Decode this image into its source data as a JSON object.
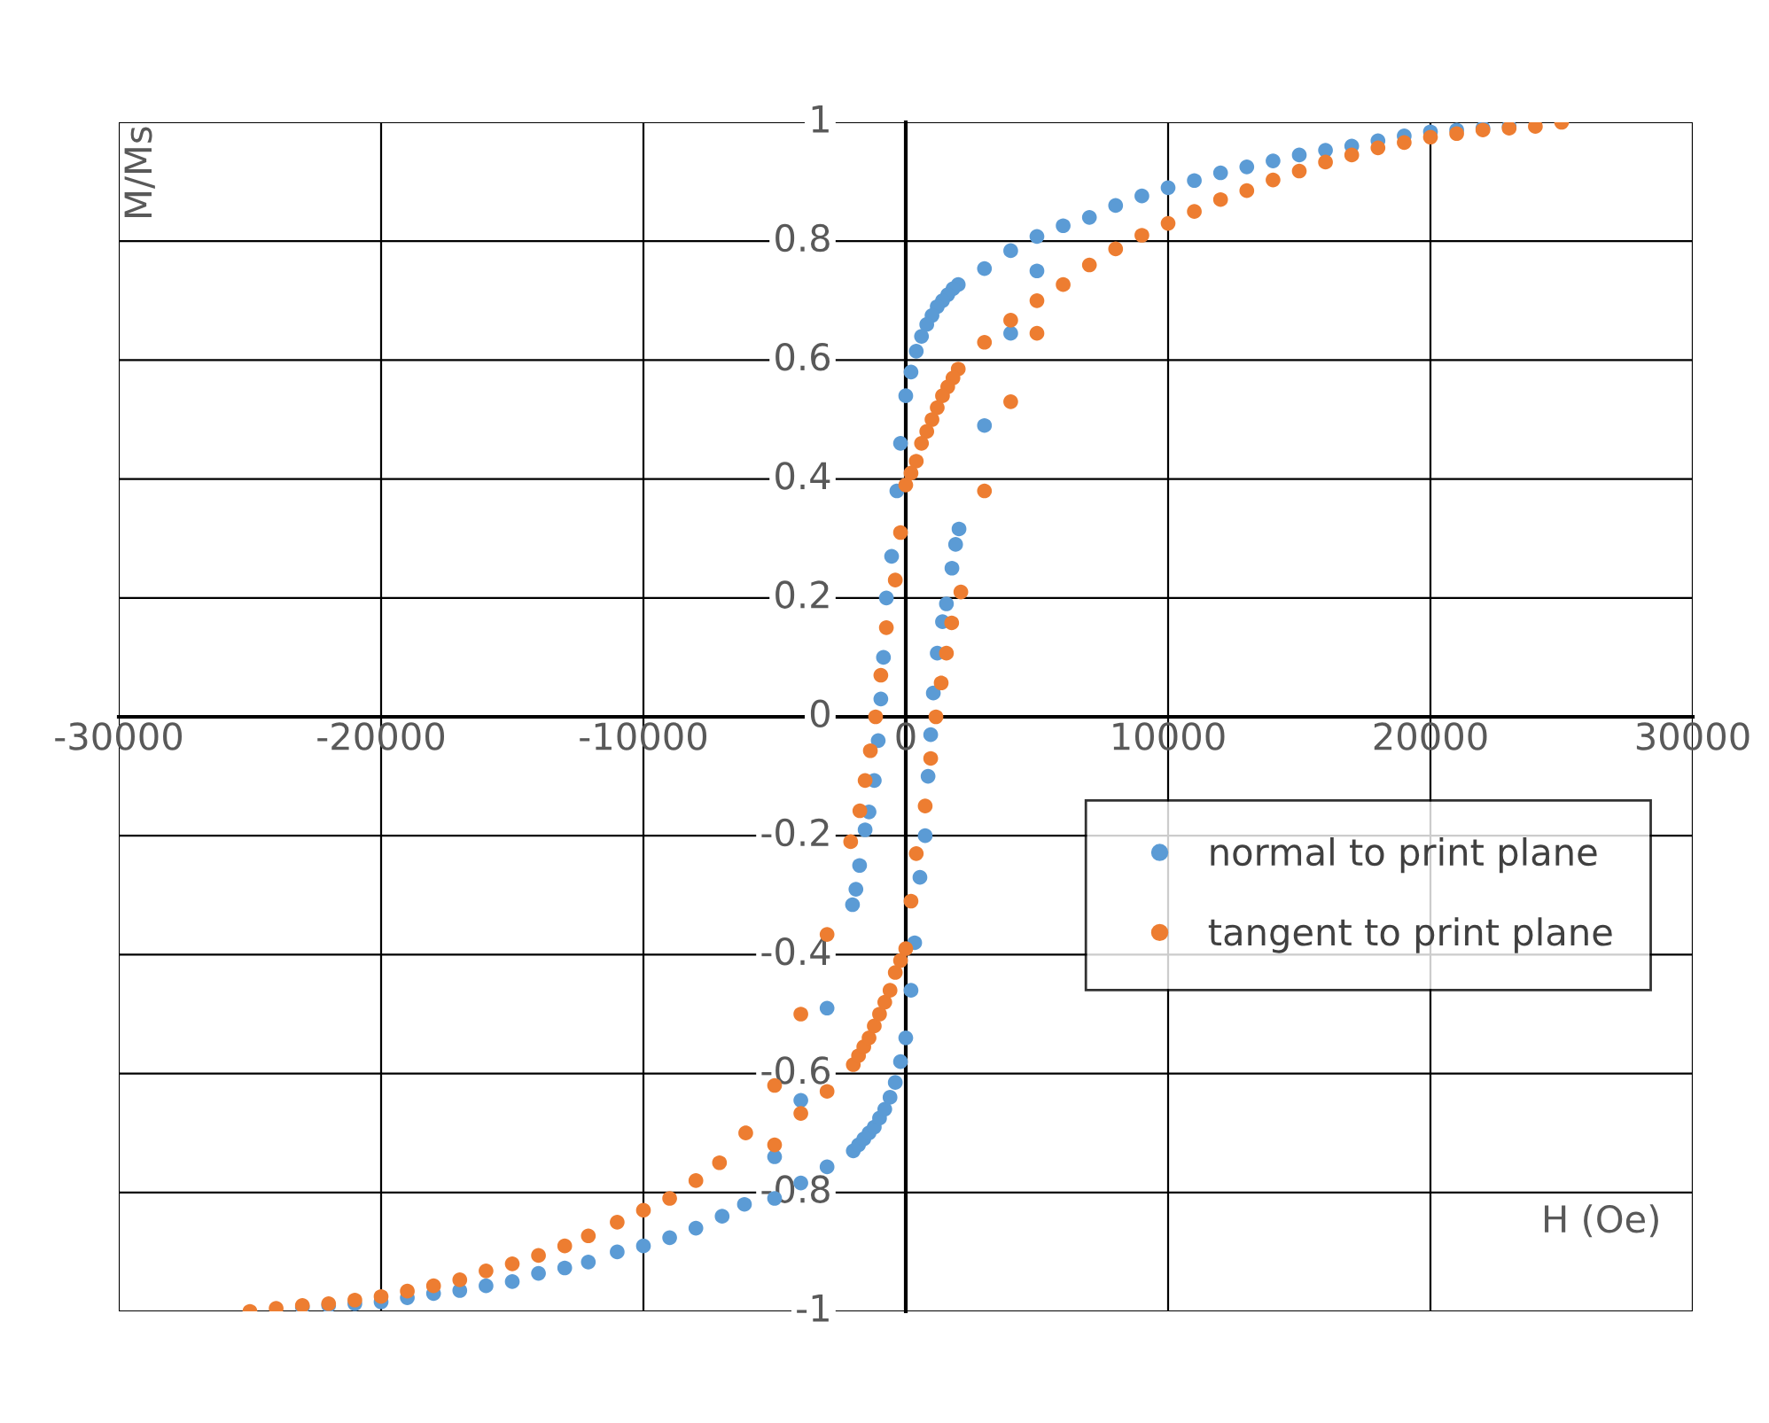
{
  "chart_data": {
    "type": "scatter",
    "xlabel": "H (Oe)",
    "ylabel": "M/Ms",
    "xlim": [
      -30000,
      30000
    ],
    "ylim": [
      -1,
      1
    ],
    "xticks": [
      -30000,
      -20000,
      -10000,
      0,
      10000,
      20000,
      30000
    ],
    "yticks": [
      -1,
      -0.8,
      -0.6,
      -0.4,
      -0.2,
      0,
      0.2,
      0.4,
      0.6,
      0.8,
      1
    ],
    "grid": true,
    "legend": "center right",
    "marker": "circle",
    "series": [
      {
        "name": "normal to print plane",
        "color": "#5b9bd5",
        "x": [
          23000,
          22000,
          21000,
          20000,
          19000,
          18000,
          17000,
          16000,
          15000,
          14000,
          13000,
          12000,
          11000,
          10000,
          9000,
          8000,
          7000,
          6000,
          5000,
          4000,
          3000,
          2000,
          1800,
          1600,
          1400,
          1200,
          1000,
          800,
          600,
          400,
          200,
          0,
          -200,
          -340,
          -540,
          -740,
          -850,
          -950,
          -1050,
          -1200,
          -1400,
          -1550,
          -1760,
          -1900,
          -2030,
          -3000,
          -4000,
          -5000,
          -6150,
          -7000,
          -8000,
          -9000,
          -10000,
          -11000,
          -12100,
          -13000,
          -14000,
          -15000,
          -16000,
          -17000,
          -18000,
          -19000,
          -20000,
          -21000,
          -22000,
          -23000,
          -5000,
          -4000,
          -3000,
          -2000,
          -1800,
          -1600,
          -1400,
          -1200,
          -1000,
          -800,
          -600,
          -400,
          -200,
          0,
          200,
          340,
          540,
          740,
          850,
          950,
          1050,
          1200,
          1400,
          1550,
          1760,
          1900,
          2030,
          3000,
          4000,
          5000
        ],
        "values": [
          0.993,
          0.99,
          0.987,
          0.984,
          0.977,
          0.969,
          0.96,
          0.953,
          0.945,
          0.935,
          0.925,
          0.915,
          0.902,
          0.89,
          0.876,
          0.86,
          0.84,
          0.826,
          0.808,
          0.784,
          0.754,
          0.727,
          0.72,
          0.71,
          0.7,
          0.69,
          0.675,
          0.66,
          0.64,
          0.615,
          0.58,
          0.54,
          0.46,
          0.38,
          0.27,
          0.2,
          0.1,
          0.03,
          -0.04,
          -0.107,
          -0.16,
          -0.19,
          -0.25,
          -0.29,
          -0.316,
          -0.49,
          -0.645,
          -0.74,
          -0.82,
          -0.84,
          -0.86,
          -0.876,
          -0.89,
          -0.9,
          -0.917,
          -0.927,
          -0.936,
          -0.95,
          -0.957,
          -0.965,
          -0.97,
          -0.977,
          -0.984,
          -0.987,
          -0.99,
          -0.993,
          -0.81,
          -0.784,
          -0.757,
          -0.73,
          -0.72,
          -0.71,
          -0.7,
          -0.69,
          -0.675,
          -0.66,
          -0.64,
          -0.615,
          -0.58,
          -0.54,
          -0.46,
          -0.38,
          -0.27,
          -0.2,
          -0.1,
          -0.03,
          0.04,
          0.107,
          0.16,
          0.19,
          0.25,
          0.29,
          0.316,
          0.49,
          0.645,
          0.75
        ]
      },
      {
        "name": "tangent to print plane",
        "color": "#ed7d31",
        "x": [
          25000,
          24000,
          23000,
          22000,
          21000,
          20000,
          19000,
          18000,
          17000,
          16000,
          15000,
          14000,
          13000,
          12000,
          11000,
          10000,
          9000,
          8000,
          7000,
          6000,
          5000,
          4000,
          3000,
          2000,
          1800,
          1600,
          1400,
          1200,
          1000,
          800,
          600,
          400,
          200,
          0,
          -200,
          -400,
          -740,
          -950,
          -1150,
          -1350,
          -1550,
          -1750,
          -2100,
          -3000,
          -4000,
          -5000,
          -6100,
          -7100,
          -8000,
          -9000,
          -10000,
          -11000,
          -12100,
          -13000,
          -14000,
          -15000,
          -16000,
          -17000,
          -18000,
          -19000,
          -20000,
          -21000,
          -22000,
          -23000,
          -24000,
          -25000,
          -5000,
          -4000,
          -3000,
          -2000,
          -1800,
          -1600,
          -1400,
          -1200,
          -1000,
          -800,
          -600,
          -400,
          -200,
          0,
          200,
          400,
          740,
          950,
          1150,
          1350,
          1550,
          1750,
          2100,
          3000,
          4000,
          5000
        ],
        "values": [
          1.0,
          0.993,
          0.99,
          0.987,
          0.981,
          0.975,
          0.966,
          0.957,
          0.945,
          0.933,
          0.918,
          0.903,
          0.885,
          0.87,
          0.85,
          0.83,
          0.81,
          0.787,
          0.76,
          0.727,
          0.7,
          0.667,
          0.63,
          0.585,
          0.57,
          0.555,
          0.54,
          0.52,
          0.5,
          0.48,
          0.46,
          0.43,
          0.41,
          0.39,
          0.31,
          0.23,
          0.15,
          0.07,
          0.0,
          -0.057,
          -0.107,
          -0.158,
          -0.21,
          -0.366,
          -0.5,
          -0.62,
          -0.7,
          -0.75,
          -0.78,
          -0.81,
          -0.83,
          -0.85,
          -0.873,
          -0.89,
          -0.906,
          -0.92,
          -0.932,
          -0.947,
          -0.957,
          -0.966,
          -0.975,
          -0.981,
          -0.987,
          -0.99,
          -0.995,
          -1.0,
          -0.72,
          -0.667,
          -0.63,
          -0.585,
          -0.57,
          -0.555,
          -0.54,
          -0.52,
          -0.5,
          -0.48,
          -0.46,
          -0.43,
          -0.41,
          -0.39,
          -0.31,
          -0.23,
          -0.15,
          -0.07,
          0.0,
          0.057,
          0.107,
          0.158,
          0.21,
          0.38,
          0.53,
          0.645
        ]
      }
    ]
  }
}
